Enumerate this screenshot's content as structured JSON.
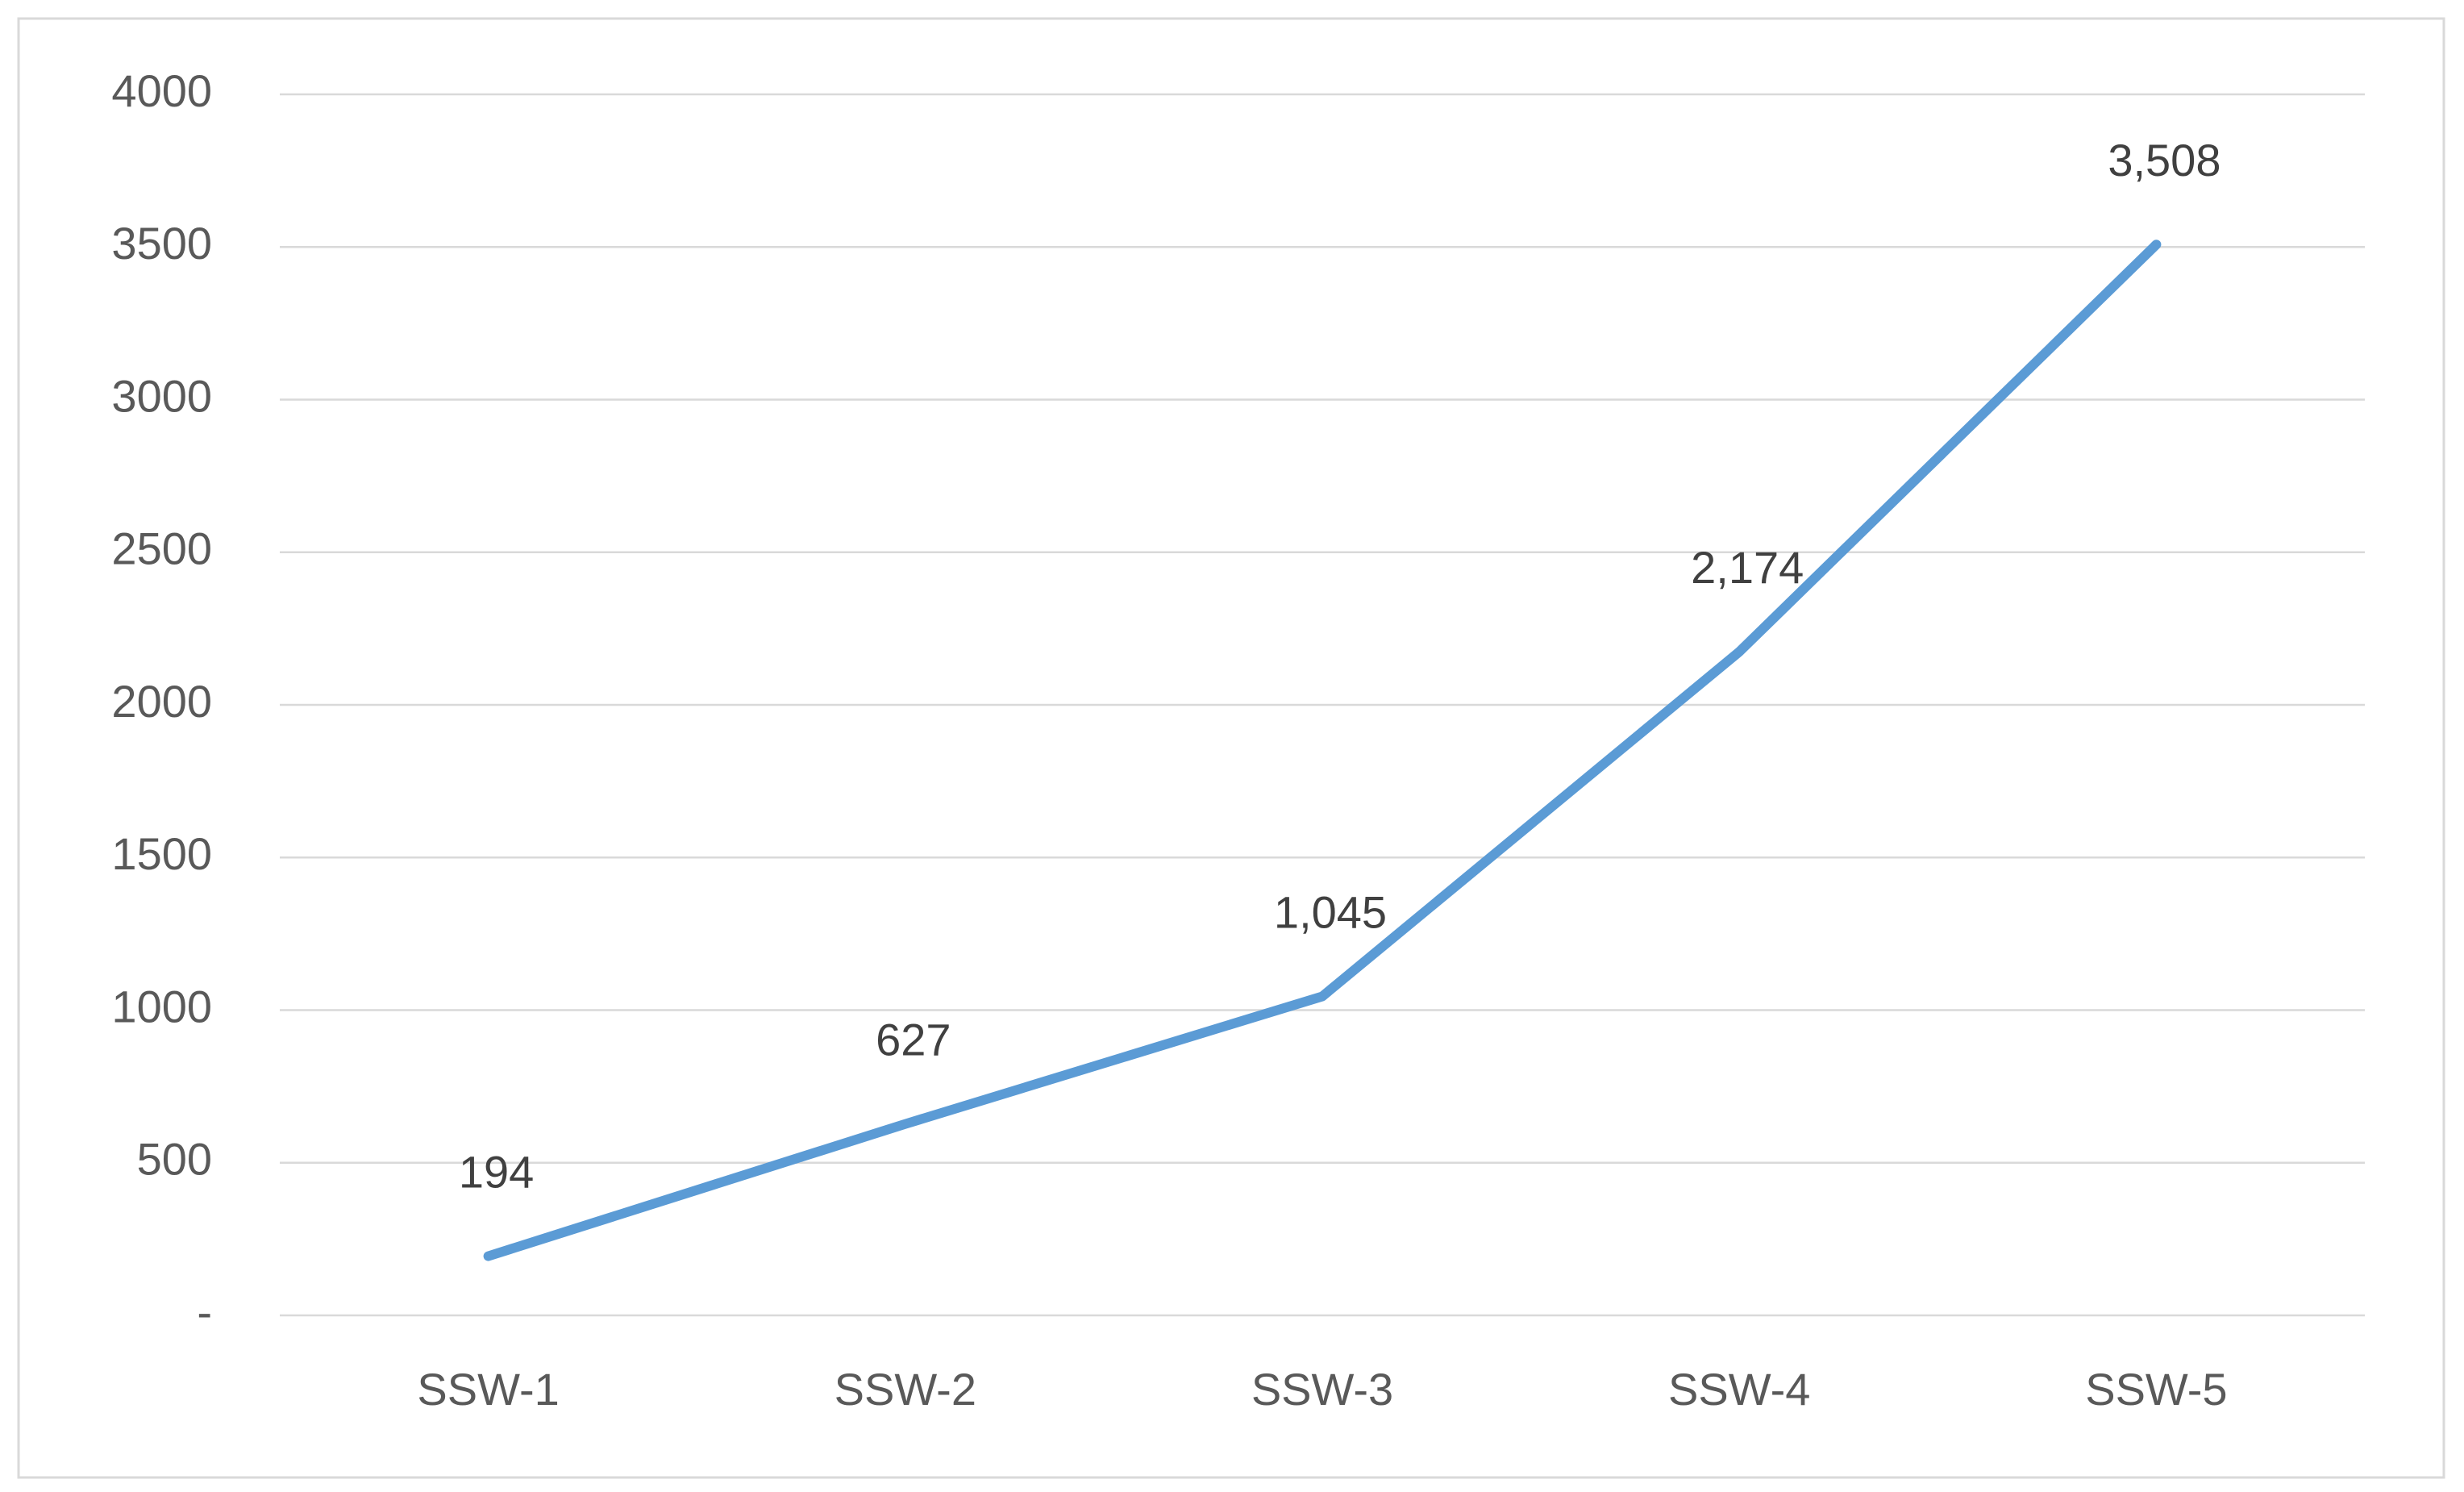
{
  "chart_data": {
    "type": "line",
    "categories": [
      "SSW-1",
      "SSW-2",
      "SSW-3",
      "SSW-4",
      "SSW-5"
    ],
    "values": [
      194,
      627,
      1045,
      2174,
      3508
    ],
    "value_labels": [
      "194",
      "627",
      "1,045",
      "2,174",
      "3,508"
    ],
    "color": "#5b9bd5",
    "ylim": [
      0,
      4000
    ],
    "yticks": [
      {
        "value": 0,
        "label": "-"
      },
      500,
      1000,
      1500,
      2000,
      2500,
      3000,
      3500,
      4000
    ],
    "grid": true
  }
}
